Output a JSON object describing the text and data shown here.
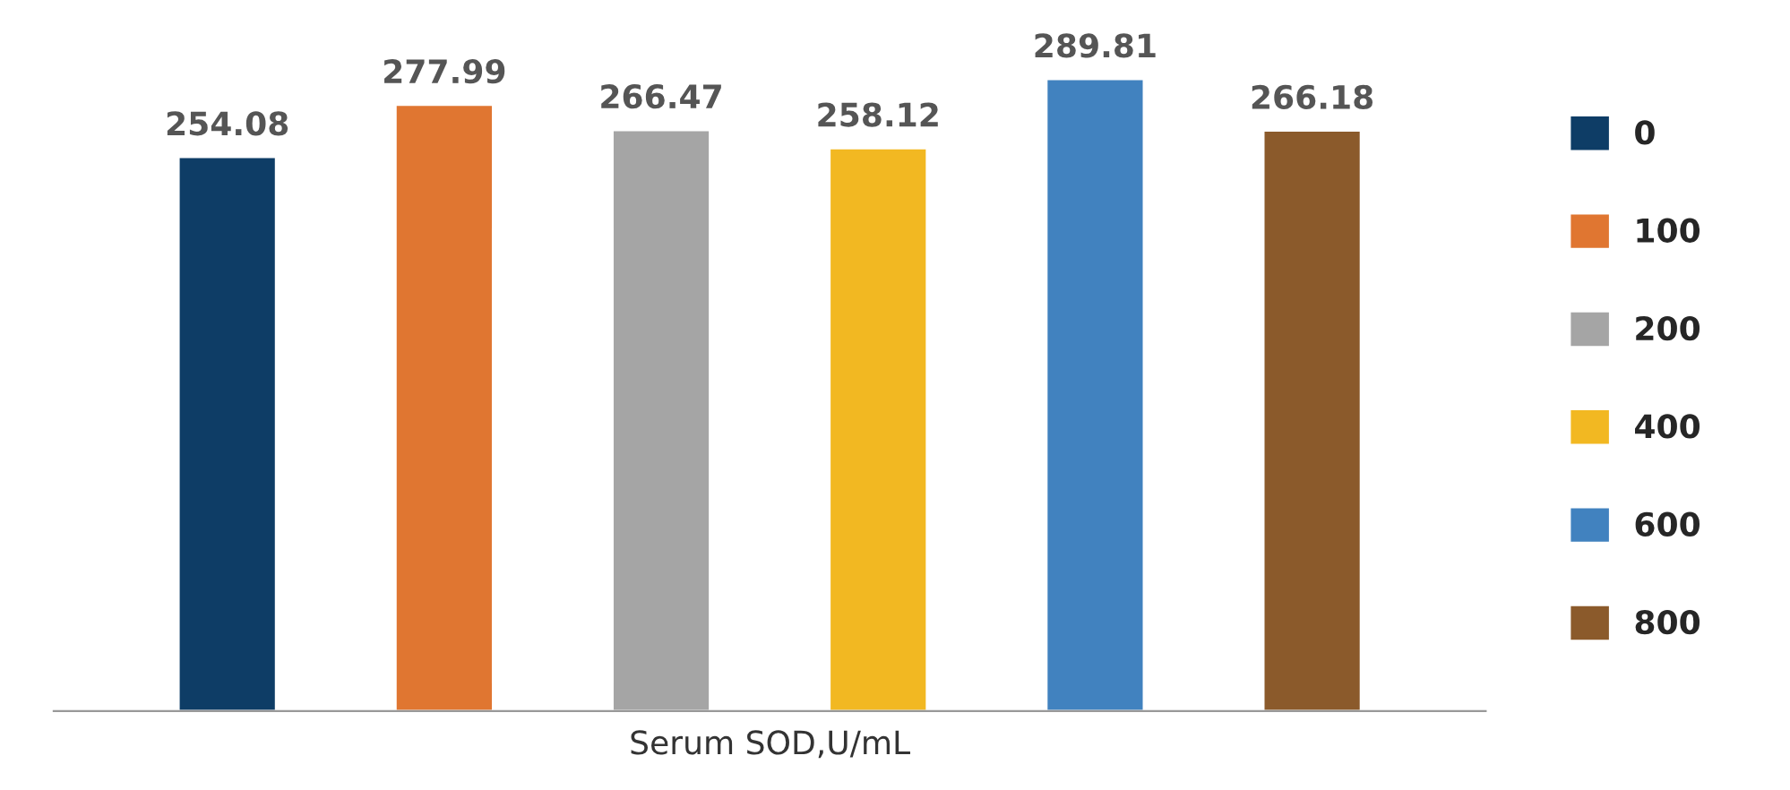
{
  "chart_data": {
    "type": "bar",
    "xlabel": "Serum SOD,U/mL",
    "categories": [
      null,
      null,
      null,
      null,
      null,
      null
    ],
    "stacked": true,
    "series": [
      {
        "name": "0",
        "color": "#0e3d66",
        "values": [
          254.08,
          null,
          null,
          null,
          null,
          null
        ]
      },
      {
        "name": "100",
        "color": "#e07631",
        "values": [
          null,
          277.99,
          null,
          null,
          null,
          null
        ]
      },
      {
        "name": "200",
        "color": "#a5a5a5",
        "values": [
          null,
          null,
          266.47,
          null,
          null,
          null
        ]
      },
      {
        "name": "400",
        "color": "#f2b822",
        "values": [
          null,
          null,
          null,
          258.12,
          null,
          null
        ]
      },
      {
        "name": "600",
        "color": "#4182bf",
        "values": [
          null,
          null,
          null,
          null,
          289.81,
          null
        ]
      },
      {
        "name": "800",
        "color": "#8b5a2b",
        "values": [
          null,
          null,
          null,
          null,
          null,
          266.18
        ]
      }
    ],
    "data_labels": true,
    "legend": "right",
    "grid": false
  }
}
